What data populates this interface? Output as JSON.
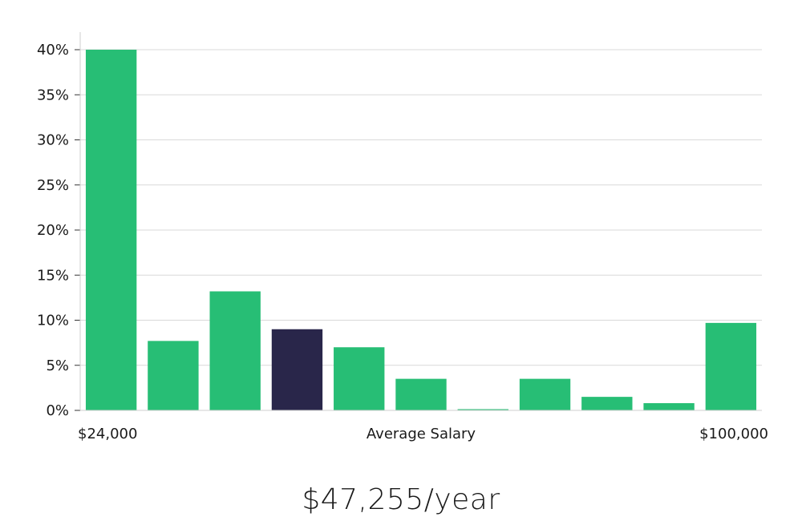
{
  "chart_data": {
    "type": "bar",
    "categories": [
      "",
      "",
      "",
      "",
      "",
      "",
      "",
      "",
      "",
      "",
      ""
    ],
    "values": [
      40,
      7.7,
      13.2,
      9,
      7,
      3.5,
      0.1,
      3.5,
      1.5,
      0.8,
      9.7
    ],
    "highlight_index": 3,
    "ylim": [
      0,
      40
    ],
    "yticks": [
      0,
      5,
      10,
      15,
      20,
      25,
      30,
      35,
      40
    ],
    "ytick_format": "%",
    "grid": true,
    "x_labels": {
      "left": "$24,000",
      "center": "Average Salary",
      "right": "$100,000"
    },
    "colors": {
      "bar": "#27be75",
      "highlight": "#29264a",
      "grid": "#d9d9d9"
    }
  },
  "summary": {
    "salary": "$47,255/year"
  }
}
